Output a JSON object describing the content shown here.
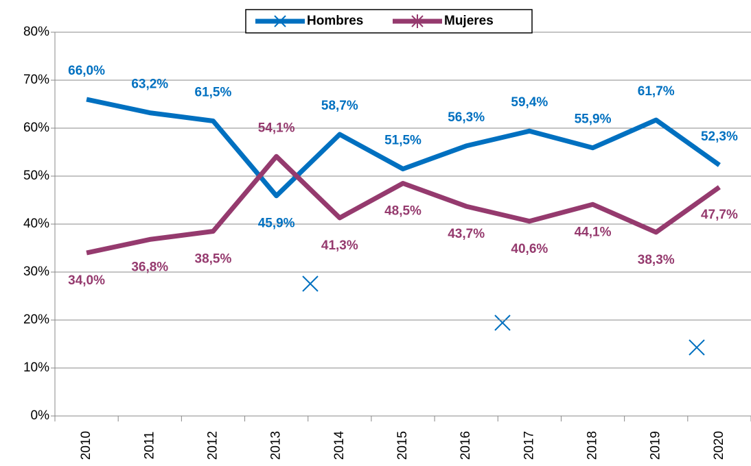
{
  "chart_data": {
    "type": "line",
    "categories": [
      "2010",
      "2011",
      "2012",
      "2013",
      "2014",
      "2015",
      "2016",
      "2017",
      "2018",
      "2019",
      "2020"
    ],
    "series": [
      {
        "name": "Hombres",
        "color": "#0070c0",
        "values": [
          66.0,
          63.2,
          61.5,
          45.9,
          58.7,
          51.5,
          56.3,
          59.4,
          55.9,
          61.7,
          52.3
        ],
        "value_labels": [
          "66,0%",
          "63,2%",
          "61,5%",
          "45,9%",
          "58,7%",
          "51,5%",
          "56,3%",
          "59,4%",
          "55,9%",
          "61,7%",
          "52,3%"
        ]
      },
      {
        "name": "Mujeres",
        "color": "#953a6e",
        "values": [
          34.0,
          36.8,
          38.5,
          54.1,
          41.3,
          48.5,
          43.7,
          40.6,
          44.1,
          38.3,
          47.7
        ],
        "value_labels": [
          "34,0%",
          "36,8%",
          "38,5%",
          "54,1%",
          "41,3%",
          "48,5%",
          "43,7%",
          "40,6%",
          "44,1%",
          "38,3%",
          "47,7%"
        ]
      }
    ],
    "ylim": [
      0,
      80
    ],
    "yticks": [
      {
        "value": 0,
        "label": "0%"
      },
      {
        "value": 10,
        "label": "10%"
      },
      {
        "value": 20,
        "label": "20%"
      },
      {
        "value": 30,
        "label": "30%"
      },
      {
        "value": 40,
        "label": "40%"
      },
      {
        "value": 50,
        "label": "50%"
      },
      {
        "value": 60,
        "label": "60%"
      },
      {
        "value": 70,
        "label": "70%"
      },
      {
        "value": 80,
        "label": "80%"
      }
    ],
    "grid": true,
    "legend": "top"
  }
}
